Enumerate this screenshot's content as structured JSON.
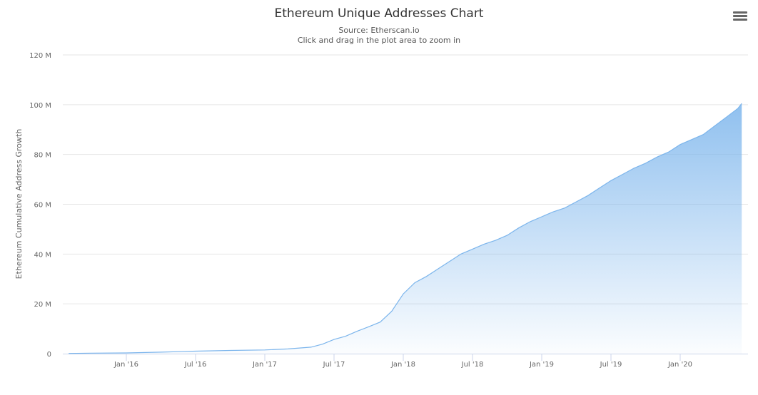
{
  "chart_data": {
    "type": "area",
    "title": "Ethereum Unique Addresses Chart",
    "subtitle": "Source: Etherscan.io",
    "hint": "Click and drag in the plot area to zoom in",
    "ylabel": "Ethereum Cumulative Address Growth",
    "xlabel": "",
    "ylim": [
      0,
      120
    ],
    "y_unit": "M",
    "y_ticks": [
      {
        "value": 0,
        "label": "0"
      },
      {
        "value": 20,
        "label": "20 M"
      },
      {
        "value": 40,
        "label": "40 M"
      },
      {
        "value": 60,
        "label": "60 M"
      },
      {
        "value": 80,
        "label": "80 M"
      },
      {
        "value": 100,
        "label": "100 M"
      },
      {
        "value": 120,
        "label": "120 M"
      }
    ],
    "x_ticks": [
      {
        "value": "2016-01",
        "label": "Jan '16"
      },
      {
        "value": "2016-07",
        "label": "Jul '16"
      },
      {
        "value": "2017-01",
        "label": "Jan '17"
      },
      {
        "value": "2017-07",
        "label": "Jul '17"
      },
      {
        "value": "2018-01",
        "label": "Jan '18"
      },
      {
        "value": "2018-07",
        "label": "Jul '18"
      },
      {
        "value": "2019-01",
        "label": "Jan '19"
      },
      {
        "value": "2019-07",
        "label": "Jul '19"
      },
      {
        "value": "2020-01",
        "label": "Jan '20"
      }
    ],
    "grid": true,
    "legend": "none",
    "series": [
      {
        "name": "Ethereum Cumulative Address Growth",
        "color": "#7cb5ec",
        "x": [
          "2015-08",
          "2015-10",
          "2016-01",
          "2016-04",
          "2016-07",
          "2016-10",
          "2017-01",
          "2017-03",
          "2017-05",
          "2017-06",
          "2017-07",
          "2017-08",
          "2017-09",
          "2017-10",
          "2017-11",
          "2017-12",
          "2018-01",
          "2018-02",
          "2018-03",
          "2018-04",
          "2018-05",
          "2018-06",
          "2018-07",
          "2018-08",
          "2018-09",
          "2018-10",
          "2018-11",
          "2018-12",
          "2019-01",
          "2019-02",
          "2019-03",
          "2019-04",
          "2019-05",
          "2019-06",
          "2019-07",
          "2019-08",
          "2019-09",
          "2019-10",
          "2019-11",
          "2019-12",
          "2020-01",
          "2020-02",
          "2020-03",
          "2020-04",
          "2020-05",
          "2020-06",
          "2020-06-10"
        ],
        "values": [
          0.1,
          0.2,
          0.3,
          0.6,
          1.0,
          1.3,
          1.5,
          1.9,
          2.6,
          3.8,
          5.7,
          7.0,
          9.0,
          10.8,
          12.7,
          17.0,
          24.0,
          28.5,
          31.0,
          34.0,
          37.0,
          40.0,
          42.0,
          44.0,
          45.5,
          47.5,
          50.5,
          53.0,
          55.0,
          57.0,
          58.5,
          61.0,
          63.5,
          66.5,
          69.5,
          72.0,
          74.5,
          76.5,
          79.0,
          81.0,
          84.0,
          86.0,
          88.0,
          91.5,
          95.0,
          98.5,
          100.5
        ]
      }
    ]
  },
  "toolbar": {
    "menu_icon": "hamburger-menu-icon"
  }
}
